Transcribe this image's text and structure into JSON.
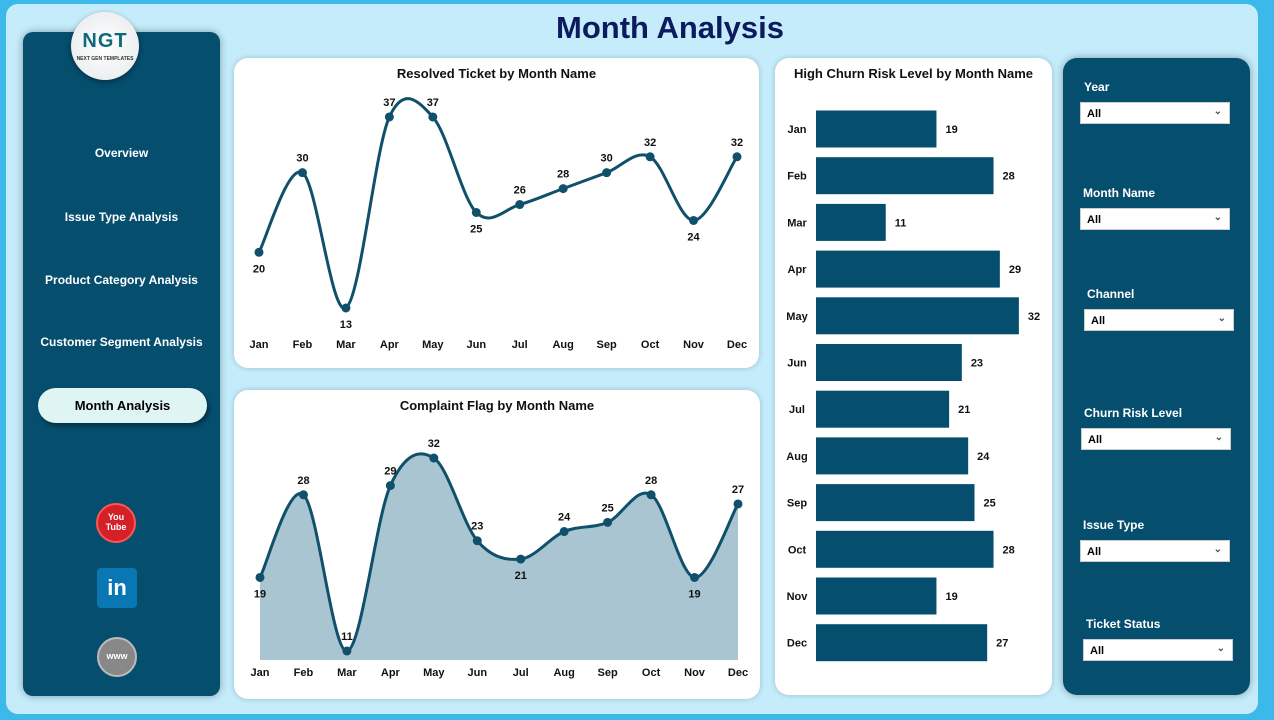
{
  "header": {
    "title": "Month Analysis"
  },
  "logo": {
    "text": "NGT",
    "subtext": "NEXT GEN TEMPLATES"
  },
  "sidebar": {
    "items": [
      {
        "label": "Overview"
      },
      {
        "label": "Issue Type Analysis"
      },
      {
        "label": "Product Category Analysis"
      },
      {
        "label": "Customer Segment Analysis"
      },
      {
        "label": "Month Analysis",
        "active": true
      }
    ],
    "social": [
      {
        "icon": "youtube-icon",
        "label": "You Tube"
      },
      {
        "icon": "linkedin-icon",
        "label": "in"
      },
      {
        "icon": "globe-www-icon",
        "label": "www"
      }
    ]
  },
  "filters": [
    {
      "label": "Year",
      "value": "All"
    },
    {
      "label": "Month Name",
      "value": "All"
    },
    {
      "label": "Channel",
      "value": "All"
    },
    {
      "label": "Churn Risk Level",
      "value": "All"
    },
    {
      "label": "Issue Type",
      "value": "All"
    },
    {
      "label": "Ticket Status",
      "value": "All"
    }
  ],
  "colors": {
    "primary": "#064e6e",
    "line": "#0b4d6b",
    "area": "#a8c5d1",
    "background": "#c4ecfb"
  },
  "chart_data": [
    {
      "type": "line",
      "title": "Resolved Ticket by Month Name",
      "categories": [
        "Jan",
        "Feb",
        "Mar",
        "Apr",
        "May",
        "Jun",
        "Jul",
        "Aug",
        "Sep",
        "Oct",
        "Nov",
        "Dec"
      ],
      "values": [
        20,
        30,
        13,
        37,
        37,
        25,
        26,
        28,
        30,
        32,
        24,
        32
      ],
      "data_labels": true,
      "grid": false
    },
    {
      "type": "area",
      "title": "Complaint Flag by Month Name",
      "categories": [
        "Jan",
        "Feb",
        "Mar",
        "Apr",
        "May",
        "Jun",
        "Jul",
        "Aug",
        "Sep",
        "Oct",
        "Nov",
        "Dec"
      ],
      "values": [
        19,
        28,
        11,
        29,
        32,
        23,
        21,
        24,
        25,
        28,
        19,
        27
      ],
      "data_labels": true,
      "grid": false
    },
    {
      "type": "bar",
      "orientation": "horizontal",
      "title": "High Churn Risk Level by Month Name",
      "categories": [
        "Jan",
        "Feb",
        "Mar",
        "Apr",
        "May",
        "Jun",
        "Jul",
        "Aug",
        "Sep",
        "Oct",
        "Nov",
        "Dec"
      ],
      "values": [
        19,
        28,
        11,
        29,
        32,
        23,
        21,
        24,
        25,
        28,
        19,
        27
      ],
      "data_labels": true,
      "grid": false
    }
  ]
}
